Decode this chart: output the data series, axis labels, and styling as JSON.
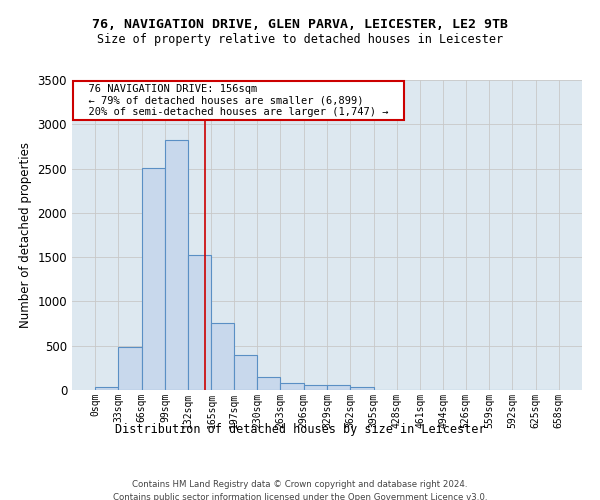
{
  "title_line1": "76, NAVIGATION DRIVE, GLEN PARVA, LEICESTER, LE2 9TB",
  "title_line2": "Size of property relative to detached houses in Leicester",
  "xlabel": "Distribution of detached houses by size in Leicester",
  "ylabel": "Number of detached properties",
  "footer_line1": "Contains HM Land Registry data © Crown copyright and database right 2024.",
  "footer_line2": "Contains public sector information licensed under the Open Government Licence v3.0.",
  "annotation_line1": "76 NAVIGATION DRIVE: 156sqm",
  "annotation_line2": "← 79% of detached houses are smaller (6,899)",
  "annotation_line3": "20% of semi-detached houses are larger (1,747) →",
  "property_size": 156,
  "bin_edges": [
    0,
    33,
    66,
    99,
    132,
    165,
    197,
    230,
    263,
    296,
    329,
    362,
    395,
    428,
    461,
    494,
    526,
    559,
    592,
    625,
    658
  ],
  "bin_counts": [
    30,
    480,
    2510,
    2820,
    1520,
    760,
    390,
    150,
    75,
    55,
    55,
    30,
    0,
    0,
    0,
    0,
    0,
    0,
    0,
    0
  ],
  "bar_facecolor": "#c8d8ec",
  "bar_edgecolor": "#5a8fc4",
  "bar_linewidth": 0.8,
  "vline_color": "#cc0000",
  "vline_linewidth": 1.2,
  "annotation_box_edgecolor": "#cc0000",
  "annotation_box_facecolor": "white",
  "grid_color": "#c8c8c8",
  "axes_background": "#dde8f0",
  "ylim": [
    0,
    3500
  ],
  "yticks": [
    0,
    500,
    1000,
    1500,
    2000,
    2500,
    3000,
    3500
  ]
}
